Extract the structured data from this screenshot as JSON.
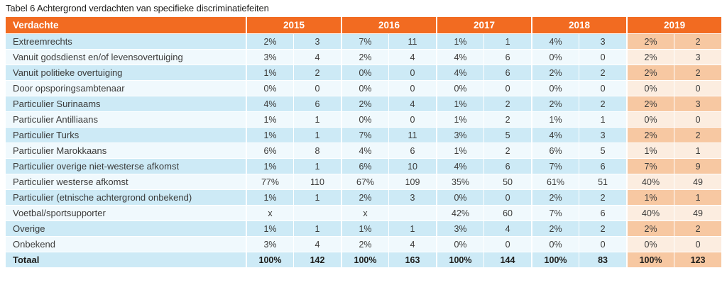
{
  "title": "Tabel 6 Achtergrond verdachten van specifieke discriminatiefeiten",
  "colors": {
    "header_bg": "#F26B21",
    "row_cyan": "#CDEAF6",
    "row_light": "#F0F9FD",
    "col2019_on_cyan": "#F7C8A2",
    "col2019_on_light": "#FCEDE0",
    "text": "#3B3B3A"
  },
  "table": {
    "header_label": "Verdachte",
    "years": [
      "2015",
      "2016",
      "2017",
      "2018",
      "2019"
    ],
    "rows": [
      {
        "label": "Extreemrechts",
        "bold": false,
        "values": [
          "2%",
          "3",
          "7%",
          "11",
          "1%",
          "1",
          "4%",
          "3",
          "2%",
          "2"
        ]
      },
      {
        "label": "Vanuit godsdienst en/of levensovertuiging",
        "bold": false,
        "values": [
          "3%",
          "4",
          "2%",
          "4",
          "4%",
          "6",
          "0%",
          "0",
          "2%",
          "3"
        ]
      },
      {
        "label": "Vanuit politieke overtuiging",
        "bold": false,
        "values": [
          "1%",
          "2",
          "0%",
          "0",
          "4%",
          "6",
          "2%",
          "2",
          "2%",
          "2"
        ]
      },
      {
        "label": "Door opsporingsambtenaar",
        "bold": false,
        "values": [
          "0%",
          "0",
          "0%",
          "0",
          "0%",
          "0",
          "0%",
          "0",
          "0%",
          "0"
        ]
      },
      {
        "label": "Particulier Surinaams",
        "bold": false,
        "values": [
          "4%",
          "6",
          "2%",
          "4",
          "1%",
          "2",
          "2%",
          "2",
          "2%",
          "3"
        ]
      },
      {
        "label": "Particulier Antilliaans",
        "bold": false,
        "values": [
          "1%",
          "1",
          "0%",
          "0",
          "1%",
          "2",
          "1%",
          "1",
          "0%",
          "0"
        ]
      },
      {
        "label": "Particulier Turks",
        "bold": false,
        "values": [
          "1%",
          "1",
          "7%",
          "11",
          "3%",
          "5",
          "4%",
          "3",
          "2%",
          "2"
        ]
      },
      {
        "label": "Particulier Marokkaans",
        "bold": false,
        "values": [
          "6%",
          "8",
          "4%",
          "6",
          "1%",
          "2",
          "6%",
          "5",
          "1%",
          "1"
        ]
      },
      {
        "label": "Particulier overige niet-westerse afkomst",
        "bold": false,
        "values": [
          "1%",
          "1",
          "6%",
          "10",
          "4%",
          "6",
          "7%",
          "6",
          "7%",
          "9"
        ]
      },
      {
        "label": "Particulier westerse afkomst",
        "bold": false,
        "values": [
          "77%",
          "110",
          "67%",
          "109",
          "35%",
          "50",
          "61%",
          "51",
          "40%",
          "49"
        ]
      },
      {
        "label": "Particulier (etnische achtergrond onbekend)",
        "bold": false,
        "values": [
          "1%",
          "1",
          "2%",
          "3",
          "0%",
          "0",
          "2%",
          "2",
          "1%",
          "1"
        ]
      },
      {
        "label": "Voetbal/sportsupporter",
        "bold": false,
        "values": [
          "x",
          "",
          "x",
          "",
          "42%",
          "60",
          "7%",
          "6",
          "40%",
          "49"
        ]
      },
      {
        "label": "Overige",
        "bold": false,
        "values": [
          "1%",
          "1",
          "1%",
          "1",
          "3%",
          "4",
          "2%",
          "2",
          "2%",
          "2"
        ]
      },
      {
        "label": "Onbekend",
        "bold": false,
        "values": [
          "3%",
          "4",
          "2%",
          "4",
          "0%",
          "0",
          "0%",
          "0",
          "0%",
          "0"
        ]
      },
      {
        "label": "Totaal",
        "bold": true,
        "values": [
          "100%",
          "142",
          "100%",
          "163",
          "100%",
          "144",
          "100%",
          "83",
          "100%",
          "123"
        ]
      }
    ]
  }
}
